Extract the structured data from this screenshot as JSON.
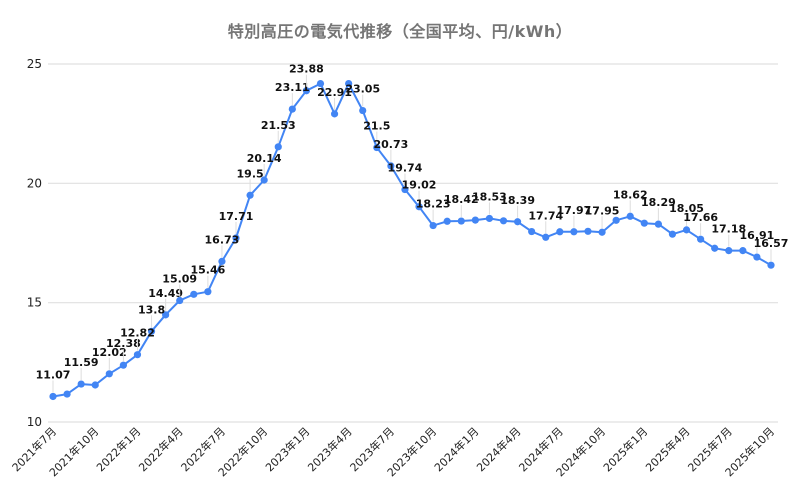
{
  "chart_data": {
    "type": "line",
    "title": "特別高圧の電気代推移（全国平均、円/kWh）",
    "xlabel": "",
    "ylabel": "",
    "ylim": [
      10,
      25
    ],
    "yticks": [
      10,
      15,
      20,
      25
    ],
    "grid": true,
    "legend": "none",
    "x_tick_labels": [
      "2021年7月",
      "2021年10月",
      "2022年1月",
      "2022年4月",
      "2022年7月",
      "2022年10月",
      "2023年1月",
      "2023年4月",
      "2023年7月",
      "2023年10月",
      "2024年1月",
      "2024年4月",
      "2024年7月",
      "2024年10月",
      "2025年1月",
      "2025年4月",
      "2025年7月",
      "2025年10月"
    ],
    "x": [
      "2021-07",
      "2021-08",
      "2021-09",
      "2021-10",
      "2021-11",
      "2021-12",
      "2022-01",
      "2022-02",
      "2022-03",
      "2022-04",
      "2022-05",
      "2022-06",
      "2022-07",
      "2022-08",
      "2022-09",
      "2022-10",
      "2022-11",
      "2022-12",
      "2023-01",
      "2023-02",
      "2023-03",
      "2023-04",
      "2023-05",
      "2023-06",
      "2023-07",
      "2023-08",
      "2023-09",
      "2023-10",
      "2023-11",
      "2023-12",
      "2024-01",
      "2024-02",
      "2024-03",
      "2024-04",
      "2024-05",
      "2024-06",
      "2024-07",
      "2024-08",
      "2024-09",
      "2024-10",
      "2024-11",
      "2024-12",
      "2025-01",
      "2025-02",
      "2025-03",
      "2025-04",
      "2025-05",
      "2025-06",
      "2025-07",
      "2025-08",
      "2025-09",
      "2025-10"
    ],
    "series": [
      {
        "name": "特別高圧 電気代（円/kWh）",
        "color": "#4285F4",
        "values": [
          11.07,
          11.17,
          11.59,
          11.55,
          12.02,
          12.38,
          12.82,
          13.8,
          14.49,
          15.09,
          15.35,
          15.46,
          16.73,
          17.71,
          19.5,
          20.14,
          21.53,
          23.11,
          23.88,
          24.18,
          22.91,
          24.18,
          23.05,
          21.5,
          20.73,
          19.74,
          19.02,
          18.23,
          18.41,
          18.42,
          18.46,
          18.53,
          18.43,
          18.39,
          17.98,
          17.74,
          17.97,
          17.97,
          17.99,
          17.95,
          18.45,
          18.62,
          18.33,
          18.29,
          17.87,
          18.05,
          17.66,
          17.28,
          17.18,
          17.18,
          16.91,
          16.57
        ]
      }
    ],
    "data_labels": [
      {
        "i": 0,
        "text": "11.07"
      },
      {
        "i": 2,
        "text": "11.59"
      },
      {
        "i": 4,
        "text": "12.02"
      },
      {
        "i": 5,
        "text": "12.38"
      },
      {
        "i": 6,
        "text": "12.82"
      },
      {
        "i": 7,
        "text": "13.8"
      },
      {
        "i": 8,
        "text": "14.49"
      },
      {
        "i": 9,
        "text": "15.09"
      },
      {
        "i": 11,
        "text": "15.46"
      },
      {
        "i": 12,
        "text": "16.73"
      },
      {
        "i": 13,
        "text": "17.71"
      },
      {
        "i": 14,
        "text": "19.5"
      },
      {
        "i": 15,
        "text": "20.14"
      },
      {
        "i": 16,
        "text": "21.53"
      },
      {
        "i": 17,
        "text": "23.11"
      },
      {
        "i": 18,
        "text": "23.88"
      },
      {
        "i": 20,
        "text": "22.91"
      },
      {
        "i": 22,
        "text": "23.05"
      },
      {
        "i": 23,
        "text": "21.5"
      },
      {
        "i": 24,
        "text": "20.73"
      },
      {
        "i": 25,
        "text": "19.74"
      },
      {
        "i": 26,
        "text": "19.02"
      },
      {
        "i": 27,
        "text": "18.23"
      },
      {
        "i": 29,
        "text": "18.42"
      },
      {
        "i": 31,
        "text": "18.53"
      },
      {
        "i": 33,
        "text": "18.39"
      },
      {
        "i": 35,
        "text": "17.74"
      },
      {
        "i": 37,
        "text": "17.97"
      },
      {
        "i": 39,
        "text": "17.95"
      },
      {
        "i": 41,
        "text": "18.62"
      },
      {
        "i": 43,
        "text": "18.29"
      },
      {
        "i": 45,
        "text": "18.05"
      },
      {
        "i": 46,
        "text": "17.66"
      },
      {
        "i": 48,
        "text": "17.18"
      },
      {
        "i": 50,
        "text": "16.91"
      },
      {
        "i": 51,
        "text": "16.57"
      }
    ]
  },
  "style": {
    "line_color": "#4285F4",
    "grid_color": "#e0e0e0",
    "title_color": "#757575"
  }
}
